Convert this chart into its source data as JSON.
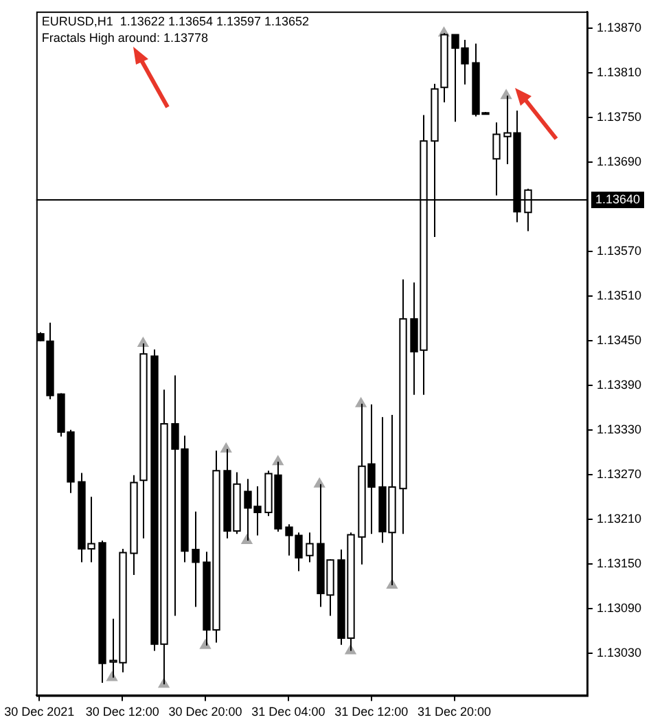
{
  "chart_data": {
    "type": "candlestick",
    "annotations": [
      "EURUSD,H1  1.13622 1.13654 1.13597 1.13652",
      "Fractals High around: 1.13778"
    ],
    "categories": [
      "30 Dec 2021",
      null,
      null,
      null,
      null,
      null,
      null,
      null,
      "30 Dec 12:00",
      null,
      null,
      null,
      null,
      null,
      null,
      null,
      "30 Dec 20:00",
      null,
      null,
      null,
      null,
      null,
      null,
      null,
      "31 Dec 04:00",
      null,
      null,
      null,
      null,
      null,
      null,
      null,
      "31 Dec 12:00",
      null,
      null,
      null,
      null,
      null,
      null,
      null,
      "31 Dec 20:00",
      null,
      null,
      null,
      null,
      null,
      null,
      null
    ],
    "color": "#000000",
    "colors": [
      "#000000",
      "#000000",
      "#000000",
      "#000000",
      "#000000",
      "#ffffff",
      "#000000",
      "#ffffff",
      "#ffffff",
      "#ffffff",
      "#ffffff",
      "#000000",
      "#ffffff",
      "#000000",
      "#000000",
      "#000000",
      "#000000",
      "#ffffff",
      "#000000",
      "#ffffff",
      "#000000",
      "#000000",
      "#ffffff",
      "#000000",
      "#000000",
      "#000000",
      "#ffffff",
      "#000000",
      "#ffffff",
      "#000000",
      "#ffffff",
      "#ffffff",
      "#000000",
      "#000000",
      "#ffffff",
      "#ffffff",
      "#000000",
      "#ffffff",
      "#ffffff",
      "#ffffff",
      "#000000",
      "#000000",
      "#000000",
      "#000000",
      "#ffffff",
      "#ffffff",
      "#000000",
      "#ffffff"
    ],
    "ohlc": [
      [
        1.13459,
        1.13461,
        1.13449,
        1.1345
      ],
      [
        1.13449,
        1.13474,
        1.13371,
        1.13376
      ],
      [
        1.13378,
        1.13379,
        1.13321,
        1.13327
      ],
      [
        1.13327,
        1.1333,
        1.13245,
        1.1326
      ],
      [
        1.1326,
        1.13272,
        1.13152,
        1.1317
      ],
      [
        1.1317,
        1.1324,
        1.13152,
        1.13177
      ],
      [
        1.13178,
        1.13181,
        1.1299,
        1.13016
      ],
      [
        1.13018,
        1.13076,
        1.12997,
        1.1302
      ],
      [
        1.13017,
        1.1317,
        1.13004,
        1.13165
      ],
      [
        1.13164,
        1.13269,
        1.13135,
        1.13259
      ],
      [
        1.13262,
        1.13446,
        1.13184,
        1.13432
      ],
      [
        1.13429,
        1.13438,
        1.13033,
        1.13042
      ],
      [
        1.13042,
        1.13384,
        1.12988,
        1.13338
      ],
      [
        1.13338,
        1.13403,
        1.1308,
        1.13304
      ],
      [
        1.13304,
        1.13322,
        1.13152,
        1.13167
      ],
      [
        1.13169,
        1.1322,
        1.13092,
        1.13152
      ],
      [
        1.13152,
        1.13166,
        1.1304,
        1.13061
      ],
      [
        1.13061,
        1.13302,
        1.13044,
        1.13275
      ],
      [
        1.13275,
        1.13304,
        1.13184,
        1.13194
      ],
      [
        1.13194,
        1.13273,
        1.1319,
        1.13257
      ],
      [
        1.13247,
        1.13264,
        1.13181,
        1.13225
      ],
      [
        1.13227,
        1.13254,
        1.13188,
        1.13219
      ],
      [
        1.13219,
        1.13275,
        1.13214,
        1.13271
      ],
      [
        1.13269,
        1.13287,
        1.13193,
        1.13197
      ],
      [
        1.13199,
        1.13203,
        1.13161,
        1.13188
      ],
      [
        1.13188,
        1.13192,
        1.1314,
        1.13158
      ],
      [
        1.13161,
        1.13192,
        1.13152,
        1.13177
      ],
      [
        1.13177,
        1.13257,
        1.13092,
        1.1311
      ],
      [
        1.13108,
        1.13156,
        1.1308,
        1.13155
      ],
      [
        1.13155,
        1.13169,
        1.13041,
        1.1305
      ],
      [
        1.1305,
        1.13192,
        1.13033,
        1.13189
      ],
      [
        1.13186,
        1.13365,
        1.13149,
        1.13281
      ],
      [
        1.13284,
        1.13364,
        1.1319,
        1.13253
      ],
      [
        1.13253,
        1.13347,
        1.13178,
        1.13193
      ],
      [
        1.13192,
        1.1335,
        1.13121,
        1.13253
      ],
      [
        1.13251,
        1.13532,
        1.1319,
        1.13479
      ],
      [
        1.13479,
        1.13528,
        1.13377,
        1.13435
      ],
      [
        1.13437,
        1.13753,
        1.13377,
        1.13718
      ],
      [
        1.13718,
        1.13795,
        1.13589,
        1.13788
      ],
      [
        1.1379,
        1.13863,
        1.1377,
        1.13861
      ],
      [
        1.13861,
        1.13861,
        1.13744,
        1.13843
      ],
      [
        1.13843,
        1.13854,
        1.13794,
        1.13822
      ],
      [
        1.13823,
        1.13849,
        1.13751,
        1.13754
      ],
      [
        1.13756,
        1.13757,
        1.13755,
        1.13756
      ],
      [
        1.13694,
        1.13743,
        1.13645,
        1.13727
      ],
      [
        1.13724,
        1.13779,
        1.13687,
        1.13729
      ],
      [
        1.13729,
        1.13759,
        1.13609,
        1.13623
      ],
      [
        1.13622,
        1.13654,
        1.13597,
        1.13652
      ]
    ],
    "series": [
      {
        "type": "scatter",
        "color": "#a9a9a9",
        "marker": "triangle",
        "values": [
          null,
          null,
          null,
          null,
          null,
          null,
          null,
          null,
          null,
          null,
          1.13446,
          null,
          null,
          null,
          null,
          null,
          null,
          null,
          1.13304,
          null,
          null,
          null,
          null,
          1.13287,
          null,
          null,
          null,
          1.13257,
          null,
          null,
          null,
          1.13365,
          null,
          null,
          null,
          null,
          null,
          null,
          null,
          1.13863,
          null,
          null,
          null,
          null,
          null,
          1.13779,
          null,
          null
        ]
      },
      {
        "type": "scatter",
        "color": "#a9a9a9",
        "marker": "triangle",
        "values": [
          null,
          null,
          null,
          null,
          null,
          null,
          null,
          1.12997,
          null,
          null,
          null,
          null,
          1.12988,
          null,
          null,
          null,
          1.1304,
          null,
          null,
          null,
          1.13181,
          null,
          null,
          null,
          null,
          null,
          null,
          null,
          null,
          null,
          1.13033,
          null,
          null,
          null,
          1.13121,
          null,
          null,
          null,
          null,
          null,
          null,
          null,
          null,
          null,
          null,
          null,
          null,
          null
        ]
      }
    ],
    "ylim": [
      1.12973,
      1.13892
    ],
    "yticks": [
      {
        "value": 1.1303,
        "label": "1.13030"
      },
      {
        "value": 1.1309,
        "label": "1.13090"
      },
      {
        "value": 1.1315,
        "label": "1.13150"
      },
      {
        "value": 1.1321,
        "label": "1.13210"
      },
      {
        "value": 1.1327,
        "label": "1.13270"
      },
      {
        "value": 1.1333,
        "label": "1.13330"
      },
      {
        "value": 1.1339,
        "label": "1.13390"
      },
      {
        "value": 1.1345,
        "label": "1.13450"
      },
      {
        "value": 1.1351,
        "label": "1.13510"
      },
      {
        "value": 1.1357,
        "label": "1.13570"
      },
      {
        "value": 1.1369,
        "label": "1.13690"
      },
      {
        "value": 1.1375,
        "label": "1.13750"
      },
      {
        "value": 1.1381,
        "label": "1.13810"
      },
      {
        "value": 1.1387,
        "label": "1.13870"
      }
    ],
    "ref_lines": [
      {
        "axis": "y",
        "value": 1.1364,
        "label": "1.13640",
        "color": "#000000"
      }
    ],
    "grid": false,
    "legend": false
  }
}
